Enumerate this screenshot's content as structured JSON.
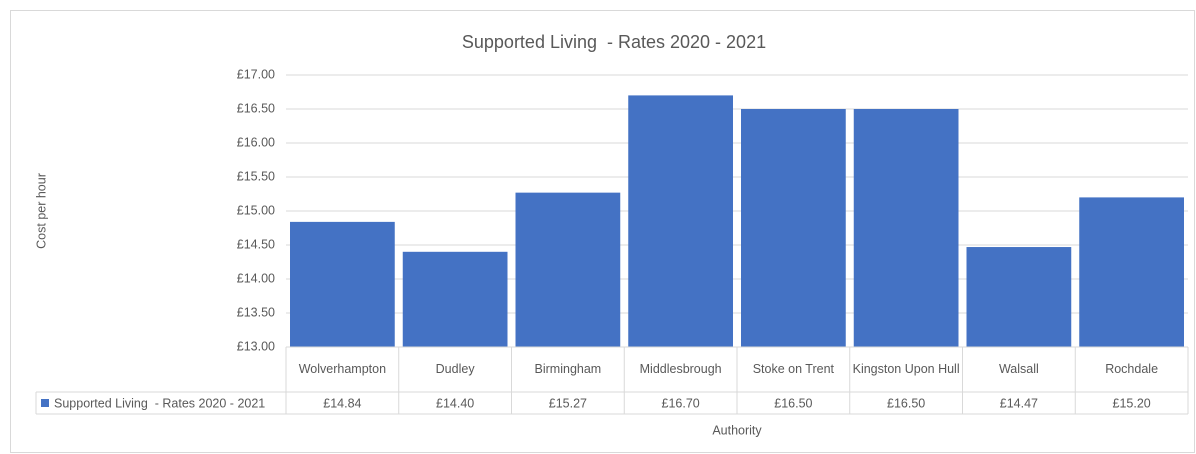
{
  "chart_data": {
    "type": "bar",
    "title": "Supported Living  - Rates 2020 - 2021",
    "x_label": "Authority",
    "y_label": "Cost per hour",
    "categories": [
      "Wolverhampton",
      "Dudley",
      "Birmingham",
      "Middlesbrough",
      "Stoke on Trent",
      "Kingston Upon Hull",
      "Walsall",
      "Rochdale"
    ],
    "series": [
      {
        "name": "Supported Living  - Rates 2020 - 2021",
        "color": "#4472c4",
        "values": [
          14.84,
          14.4,
          15.27,
          16.7,
          16.5,
          16.5,
          14.47,
          15.2
        ],
        "value_labels": [
          "£14.84",
          "£14.40",
          "£15.27",
          "£16.70",
          "£16.50",
          "£16.50",
          "£14.47",
          "£15.20"
        ]
      }
    ],
    "ylim": [
      13,
      17
    ],
    "yticks": [
      {
        "value": 13,
        "label": "£13.00"
      },
      {
        "value": 13.5,
        "label": "£13.50"
      },
      {
        "value": 14,
        "label": "£14.00"
      },
      {
        "value": 14.5,
        "label": "£14.50"
      },
      {
        "value": 15,
        "label": "£15.00"
      },
      {
        "value": 15.5,
        "label": "£15.50"
      },
      {
        "value": 16,
        "label": "£16.00"
      },
      {
        "value": 16.5,
        "label": "£16.50"
      },
      {
        "value": 17,
        "label": "£17.00"
      }
    ],
    "grid": true,
    "data_table": true
  }
}
